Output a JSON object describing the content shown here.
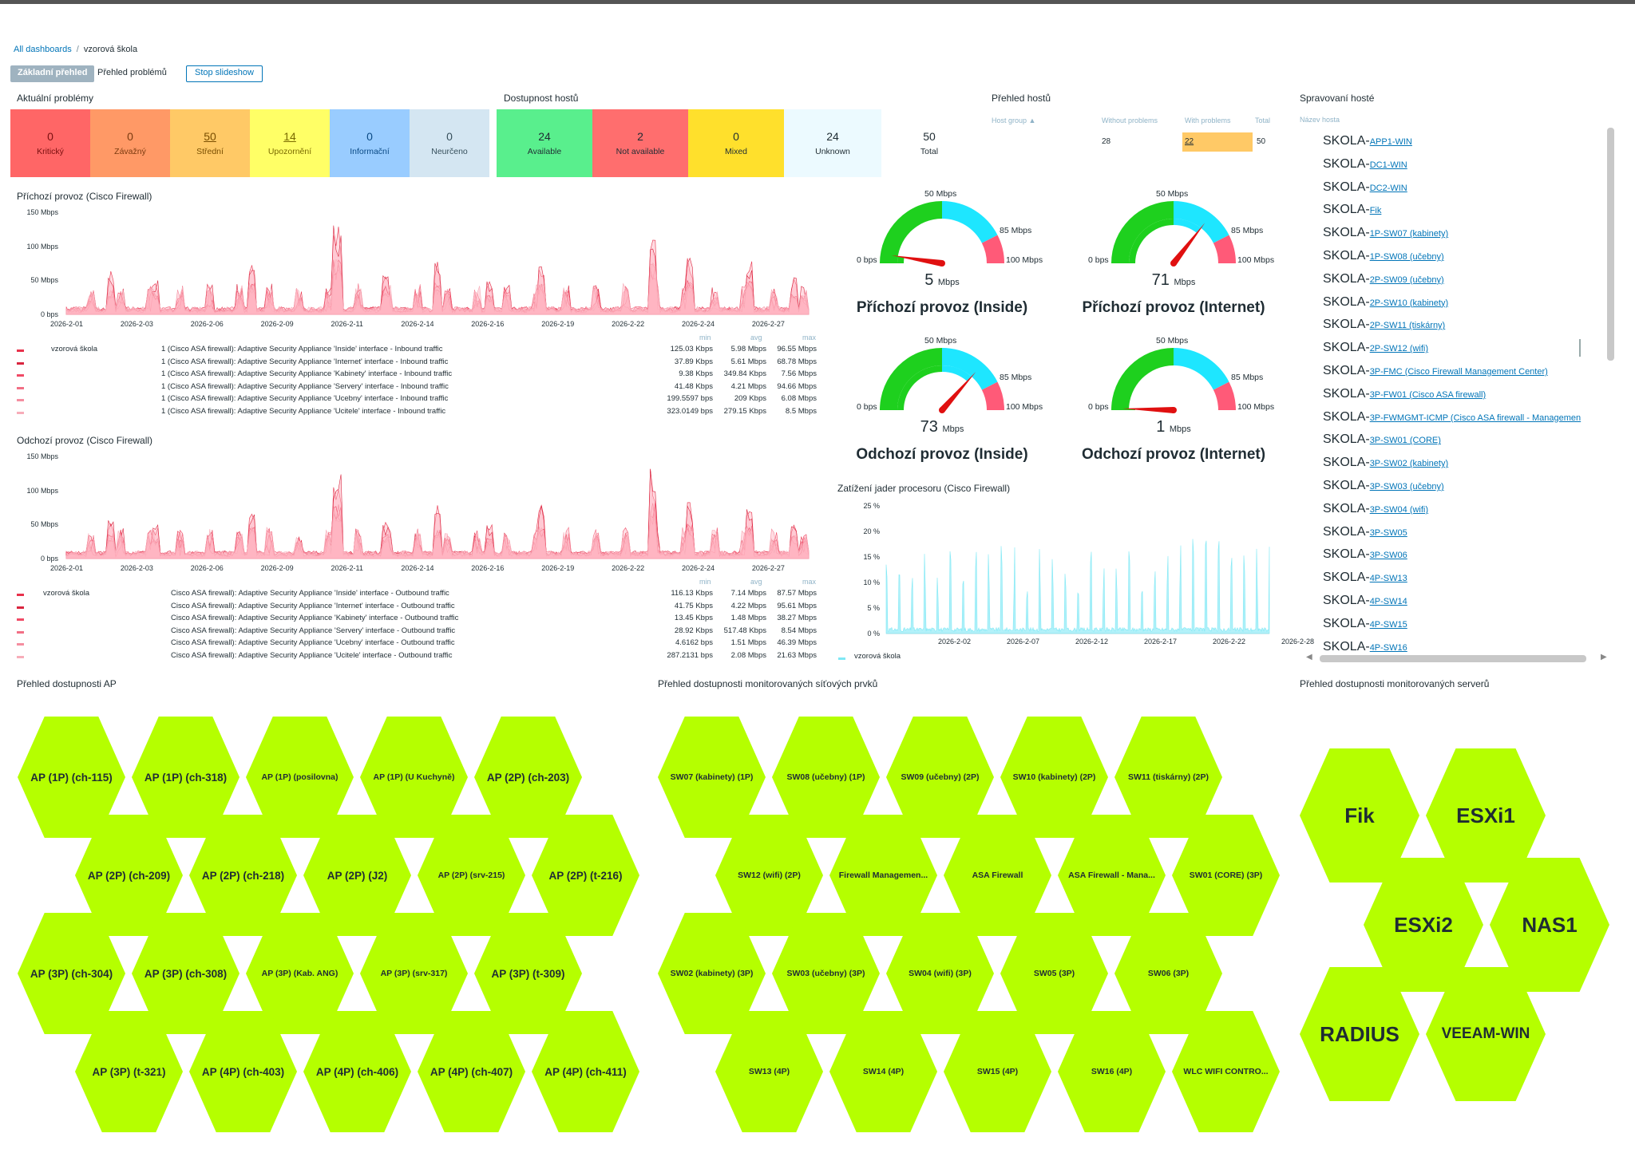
{
  "breadcrumb": {
    "all_dashboards": "All dashboards",
    "sep": "/",
    "current": "vzorová škola"
  },
  "page_tabs": {
    "basic": "Základní přehled",
    "problems": "Přehled problémů",
    "stop": "Stop slideshow"
  },
  "problems_widget": {
    "title": "Aktuální problémy",
    "items": [
      {
        "count": "0",
        "label": "Kritický",
        "bg": "#ff6666",
        "fg": "#7a0f0f"
      },
      {
        "count": "0",
        "label": "Závažný",
        "bg": "#ff9966",
        "fg": "#7a3a0f"
      },
      {
        "count": "50",
        "label": "Střední",
        "bg": "#ffc966",
        "fg": "#7a4e00"
      },
      {
        "count": "14",
        "label": "Upozornění",
        "bg": "#ffff66",
        "fg": "#7a6a00"
      },
      {
        "count": "0",
        "label": "Informační",
        "bg": "#99ccff",
        "fg": "#0b4a85"
      },
      {
        "count": "0",
        "label": "Neurčeno",
        "bg": "#d4e6f2",
        "fg": "#37505c"
      }
    ]
  },
  "availability_widget": {
    "title": "Dostupnost hostů",
    "items": [
      {
        "count": "24",
        "label": "Available",
        "bg": "#59ef8d"
      },
      {
        "count": "2",
        "label": "Not available",
        "bg": "#ff6e6e"
      },
      {
        "count": "0",
        "label": "Mixed",
        "bg": "#ffe02c"
      },
      {
        "count": "24",
        "label": "Unknown",
        "bg": "#ecfaff"
      }
    ],
    "total_count": "50",
    "total_label": "Total"
  },
  "hosts_overview": {
    "title": "Přehled hostů",
    "col_group": "Host group ▲",
    "col_without": "Without problems",
    "col_with": "With problems",
    "col_total": "Total",
    "without": "28",
    "with": "22",
    "total": "50"
  },
  "managed_hosts": {
    "title": "Spravovaní hosté",
    "col_name": "Název hosta",
    "prefix": "SKOLA-",
    "items": [
      "APP1-WIN",
      "DC1-WIN",
      "DC2-WIN",
      "Fik",
      "1P-SW07 (kabinety)",
      "1P-SW08 (učebny)",
      "2P-SW09 (učebny)",
      "2P-SW10 (kabinety)",
      "2P-SW11 (tiskárny)",
      "2P-SW12 (wifi)",
      "3P-FMC (Cisco Firewall Management Center)",
      "3P-FW01 (Cisco ASA firewall)",
      "3P-FWMGMT-ICMP (Cisco ASA firewall - Managemen",
      "3P-SW01 (CORE)",
      "3P-SW02 (kabinety)",
      "3P-SW03 (učebny)",
      "3P-SW04 (wifi)",
      "3P-SW05",
      "3P-SW06",
      "4P-SW13",
      "4P-SW14",
      "4P-SW15",
      "4P-SW16"
    ]
  },
  "inbound_chart": {
    "title": "Příchozí provoz (Cisco Firewall)",
    "legend_host": "vzorová škola",
    "stat_headers": [
      "min",
      "avg",
      "max"
    ],
    "rows": [
      {
        "name": "1 (Cisco ASA firewall): Adaptive Security Appliance 'Inside' interface - Inbound traffic",
        "min": "125.03 Kbps",
        "avg": "5.98 Mbps",
        "max": "96.55 Mbps",
        "color": "#e8314b"
      },
      {
        "name": "1 (Cisco ASA firewall): Adaptive Security Appliance 'Internet' interface - Inbound traffic",
        "min": "37.89 Kbps",
        "avg": "5.61 Mbps",
        "max": "68.78 Mbps",
        "color": "#d9253f"
      },
      {
        "name": "1 (Cisco ASA firewall): Adaptive Security Appliance 'Kabinety' interface - Inbound traffic",
        "min": "9.38 Kbps",
        "avg": "349.84 Kbps",
        "max": "7.56 Mbps",
        "color": "#f04a66"
      },
      {
        "name": "1 (Cisco ASA firewall): Adaptive Security Appliance 'Servery' interface - Inbound traffic",
        "min": "41.48 Kbps",
        "avg": "4.21 Mbps",
        "max": "94.66 Mbps",
        "color": "#f26f85"
      },
      {
        "name": "1 (Cisco ASA firewall): Adaptive Security Appliance 'Ucebny' interface - Inbound traffic",
        "min": "199.5597 bps",
        "avg": "209 Kbps",
        "max": "6.08 Mbps",
        "color": "#f58ea0"
      },
      {
        "name": "1 (Cisco ASA firewall): Adaptive Security Appliance 'Ucitele' interface - Inbound traffic",
        "min": "323.0149 bps",
        "avg": "279.15 Kbps",
        "max": "8.5 Mbps",
        "color": "#f7adb9"
      }
    ]
  },
  "outbound_chart": {
    "title": "Odchozí provoz (Cisco Firewall)",
    "legend_host": "vzorová škola",
    "stat_headers": [
      "min",
      "avg",
      "max"
    ],
    "rows": [
      {
        "name": "Cisco ASA firewall): Adaptive Security Appliance 'Inside' interface - Outbound traffic",
        "min": "116.13 Kbps",
        "avg": "7.14 Mbps",
        "max": "87.57 Mbps",
        "color": "#e8314b"
      },
      {
        "name": "Cisco ASA firewall): Adaptive Security Appliance 'Internet' interface - Outbound traffic",
        "min": "41.75 Kbps",
        "avg": "4.22 Mbps",
        "max": "95.61 Mbps",
        "color": "#d9253f"
      },
      {
        "name": "Cisco ASA firewall): Adaptive Security Appliance 'Kabinety' interface - Outbound traffic",
        "min": "13.45 Kbps",
        "avg": "1.48 Mbps",
        "max": "38.27 Mbps",
        "color": "#f04a66"
      },
      {
        "name": "Cisco ASA firewall): Adaptive Security Appliance 'Servery' interface - Outbound traffic",
        "min": "28.92 Kbps",
        "avg": "517.48 Kbps",
        "max": "8.54 Mbps",
        "color": "#f26f85"
      },
      {
        "name": "Cisco ASA firewall): Adaptive Security Appliance 'Ucebny' interface - Outbound traffic",
        "min": "4.6162 bps",
        "avg": "1.51 Mbps",
        "max": "46.39 Mbps",
        "color": "#f58ea0"
      },
      {
        "name": "Cisco ASA firewall): Adaptive Security Appliance 'Ucitele' interface - Outbound traffic",
        "min": "287.2131 bps",
        "avg": "2.08 Mbps",
        "max": "21.63 Mbps",
        "color": "#f7adb9"
      }
    ]
  },
  "traffic_axis": {
    "y_ticks": [
      "150 Mbps",
      "100 Mbps",
      "50 Mbps",
      "0 bps"
    ],
    "x_ticks": [
      "2026-2-01",
      "2026-2-03",
      "2026-2-06",
      "2026-2-09",
      "2026-2-11",
      "2026-2-14",
      "2026-2-16",
      "2026-2-19",
      "2026-2-22",
      "2026-2-24",
      "2026-2-27"
    ]
  },
  "gauges": {
    "labels": {
      "zero": "0 bps",
      "mid": "50 Mbps",
      "high": "85 Mbps",
      "max": "100 Mbps",
      "unit": "Mbps"
    },
    "items": [
      {
        "title": "Příchozí provoz (Inside)",
        "value": "5",
        "value_num": 5
      },
      {
        "title": "Příchozí provoz (Internet)",
        "value": "71",
        "value_num": 71
      },
      {
        "title": "Odchozí provoz (Inside)",
        "value": "73",
        "value_num": 73
      },
      {
        "title": "Odchozí provoz (Internet)",
        "value": "1",
        "value_num": 1
      }
    ],
    "colors": {
      "green": "#1ed01e",
      "cyan": "#1ee6ff",
      "red": "#ff5a78",
      "needle": "#e01010"
    }
  },
  "cpu_chart": {
    "title": "Zatížení jader procesoru (Cisco Firewall)",
    "y_ticks": [
      "25 %",
      "20 %",
      "15 %",
      "10 %",
      "5 %",
      "0 %"
    ],
    "x_ticks": [
      "2026-2-02",
      "2026-2-07",
      "2026-2-12",
      "2026-2-17",
      "2026-2-22",
      "2026-2-28"
    ],
    "legend_host": "vzorová škola",
    "color": "#7fe8f5"
  },
  "ap_honeycomb": {
    "title": "Přehled dostupnosti AP",
    "color": "#b5ff00",
    "rows": [
      [
        "AP (1P) (ch-115)",
        "AP (1P) (ch-318)",
        "AP (1P) (posilovna)",
        "AP (1P) (U Kuchyně)",
        "AP (2P) (ch-203)"
      ],
      [
        "AP (2P) (ch-209)",
        "AP (2P) (ch-218)",
        "AP (2P) (J2)",
        "AP (2P) (srv-215)",
        "AP (2P) (t-216)"
      ],
      [
        "AP (3P) (ch-304)",
        "AP (3P) (ch-308)",
        "AP (3P) (Kab. ANG)",
        "AP (3P) (srv-317)",
        "AP (3P) (t-309)"
      ],
      [
        "AP (3P) (t-321)",
        "AP (4P) (ch-403)",
        "AP (4P) (ch-406)",
        "AP (4P) (ch-407)",
        "AP (4P) (ch-411)"
      ]
    ],
    "small": [
      "AP (1P) (posilovna)",
      "AP (1P) (U Kuchyně)",
      "AP (2P) (srv-215)",
      "AP (3P) (Kab. ANG)",
      "AP (3P) (srv-317)"
    ]
  },
  "net_honeycomb": {
    "title": "Přehled dostupnosti monitorovaných síťových prvků",
    "rows": [
      [
        "SW07 (kabinety) (1P)",
        "SW08 (učebny) (1P)",
        "SW09 (učebny) (2P)",
        "SW10 (kabinety) (2P)",
        "SW11 (tiskárny) (2P)"
      ],
      [
        "SW12 (wifi) (2P)",
        "Firewall Managemen...",
        "ASA Firewall",
        "ASA Firewall - Mana...",
        "SW01 (CORE) (3P)"
      ],
      [
        "SW02 (kabinety) (3P)",
        "SW03 (učebny) (3P)",
        "SW04 (wifi) (3P)",
        "SW05 (3P)",
        "SW06 (3P)"
      ],
      [
        "SW13 (4P)",
        "SW14 (4P)",
        "SW15 (4P)",
        "SW16 (4P)",
        "WLC WIFI CONTRO..."
      ]
    ]
  },
  "srv_honeycomb": {
    "title": "Přehled dostupnosti monitorovaných serverů",
    "rows": [
      [
        "Fik",
        "ESXi1"
      ],
      [
        "ESXi2",
        "NAS1"
      ],
      [
        "RADIUS",
        "VEEAM-WIN"
      ]
    ]
  }
}
